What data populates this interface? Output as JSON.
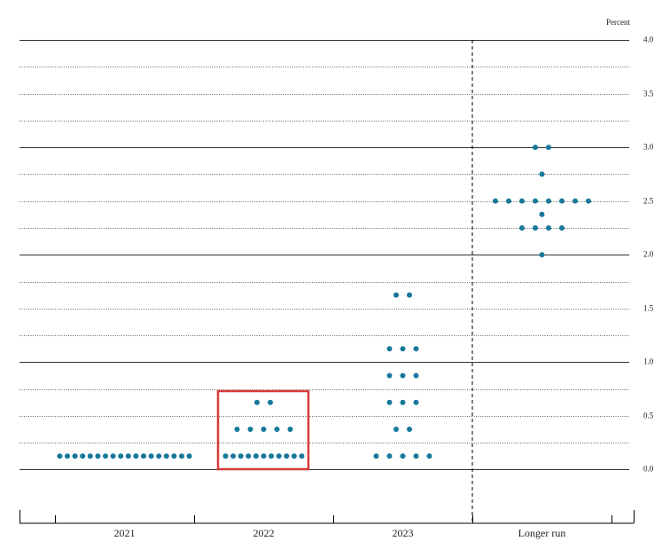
{
  "chart_data": {
    "type": "dot",
    "y_label": "Percent",
    "categories": [
      "2021",
      "2022",
      "2023",
      "Longer run"
    ],
    "values": [
      [
        0.125,
        0.125,
        0.125,
        0.125,
        0.125,
        0.125,
        0.125,
        0.125,
        0.125,
        0.125,
        0.125,
        0.125,
        0.125,
        0.125,
        0.125,
        0.125,
        0.125,
        0.125
      ],
      [
        0.125,
        0.125,
        0.125,
        0.125,
        0.125,
        0.125,
        0.125,
        0.125,
        0.125,
        0.125,
        0.125,
        0.375,
        0.375,
        0.375,
        0.375,
        0.375,
        0.625,
        0.625
      ],
      [
        0.125,
        0.125,
        0.125,
        0.125,
        0.125,
        0.375,
        0.375,
        0.625,
        0.625,
        0.625,
        0.875,
        0.875,
        0.875,
        1.125,
        1.125,
        1.125,
        1.625,
        1.625
      ],
      [
        2.0,
        2.25,
        2.25,
        2.25,
        2.25,
        2.375,
        2.5,
        2.5,
        2.5,
        2.5,
        2.5,
        2.5,
        2.5,
        2.5,
        2.75,
        3.0,
        3.0
      ]
    ],
    "color": "#17789c",
    "ylim": [
      -0.5,
      4
    ],
    "yticks": [
      {
        "value": 0,
        "label": "0.0"
      },
      0.5,
      {
        "value": 1,
        "label": "1.0"
      },
      1.5,
      {
        "value": 2,
        "label": "2.0"
      },
      2.5,
      {
        "value": 3,
        "label": "3.0"
      },
      3.5,
      {
        "value": 4,
        "label": "4.0"
      }
    ],
    "minor_yticks": [
      0.25,
      0.75,
      1.25,
      1.75,
      2.25,
      2.75,
      3.25,
      3.75
    ],
    "grid": true
  }
}
